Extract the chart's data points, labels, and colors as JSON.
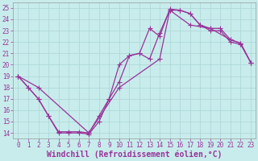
{
  "xlabel": "Windchill (Refroidissement éolien,°C)",
  "bg_color": "#c8ecec",
  "grid_color": "#b0d8d8",
  "line_color": "#993399",
  "xlim": [
    -0.5,
    23.5
  ],
  "ylim": [
    13.5,
    25.5
  ],
  "xticks": [
    0,
    1,
    2,
    3,
    4,
    5,
    6,
    7,
    8,
    9,
    10,
    11,
    12,
    13,
    14,
    15,
    16,
    17,
    18,
    19,
    20,
    21,
    22,
    23
  ],
  "yticks": [
    14,
    15,
    16,
    17,
    18,
    19,
    20,
    21,
    22,
    23,
    24,
    25
  ],
  "line1_x": [
    0,
    1,
    2,
    3,
    4,
    5,
    6,
    7,
    8,
    9,
    10,
    11,
    12,
    13,
    14,
    15,
    16,
    17,
    18,
    19,
    20,
    21,
    22,
    23
  ],
  "line1_y": [
    19.0,
    18.0,
    17.0,
    15.5,
    14.0,
    14.0,
    14.0,
    13.9,
    15.0,
    17.0,
    18.5,
    20.8,
    21.0,
    23.2,
    22.5,
    24.9,
    24.8,
    24.5,
    23.5,
    23.2,
    23.2,
    22.2,
    21.9,
    20.2
  ],
  "line2_x": [
    0,
    1,
    2,
    3,
    4,
    5,
    6,
    7,
    8,
    9,
    10,
    11,
    12,
    13,
    14,
    15,
    16,
    17,
    18,
    19,
    20,
    21,
    22,
    23
  ],
  "line2_y": [
    19.0,
    18.0,
    17.0,
    15.5,
    14.1,
    14.1,
    14.1,
    14.0,
    15.5,
    17.0,
    20.0,
    20.8,
    21.0,
    20.5,
    22.8,
    24.8,
    24.8,
    24.5,
    23.5,
    23.0,
    23.0,
    22.0,
    21.8,
    20.2
  ],
  "line3_x": [
    0,
    2,
    7,
    10,
    14,
    15,
    17,
    19,
    21,
    22,
    23
  ],
  "line3_y": [
    19.0,
    18.0,
    14.0,
    18.0,
    20.5,
    24.8,
    23.5,
    23.2,
    22.2,
    21.9,
    20.2
  ],
  "marker_size": 2.5,
  "linewidth": 0.9,
  "font_family": "monospace",
  "tick_fontsize": 5.5,
  "xlabel_fontsize": 7.0
}
